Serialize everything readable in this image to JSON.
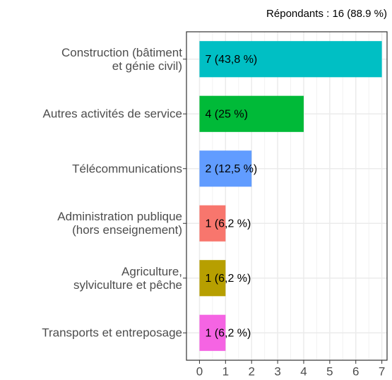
{
  "chart_data": {
    "type": "bar",
    "orientation": "horizontal",
    "subtitle": "Répondants : 16 (88.9 %)",
    "categories": [
      "Construction (bâtiment\net génie civil)",
      "Autres activités de service",
      "Télécommunications",
      "Administration publique\n(hors enseignement)",
      "Agriculture,\nsylviculture et pêche",
      "Transports et entreposage"
    ],
    "values": [
      7,
      4,
      2,
      1,
      1,
      1
    ],
    "value_labels": [
      "7 (43,8 %)",
      "4 (25 %)",
      "2 (12,5 %)",
      "1 (6,2 %)",
      "1 (6,2 %)",
      "1 (6,2 %)"
    ],
    "colors": [
      "#00bfc4",
      "#00ba38",
      "#619cff",
      "#f8766d",
      "#b79f00",
      "#f564e3"
    ],
    "xlim": [
      -0.5,
      7.2
    ],
    "xticks": [
      0,
      1,
      2,
      3,
      4,
      5,
      6,
      7
    ],
    "grid": true
  }
}
